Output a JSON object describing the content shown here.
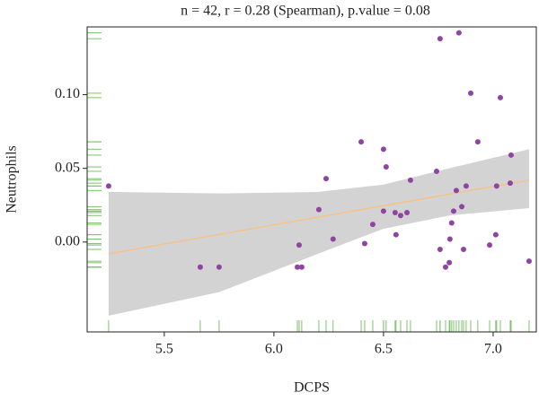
{
  "chart_data": {
    "type": "scatter",
    "title": "n = 42, r = 0.28 (Spearman), p.value = 0.08",
    "xlabel": "DCPS",
    "ylabel": "Neutrophils",
    "x": [
      5.246,
      5.664,
      5.75,
      6.107,
      6.127,
      6.115,
      6.205,
      6.238,
      6.27,
      6.398,
      6.414,
      6.451,
      6.5,
      6.5,
      6.512,
      6.553,
      6.557,
      6.578,
      6.607,
      6.623,
      6.742,
      6.758,
      6.758,
      6.783,
      6.8,
      6.803,
      6.811,
      6.82,
      6.832,
      6.844,
      6.857,
      6.865,
      6.877,
      6.898,
      6.93,
      6.984,
      7.012,
      7.016,
      7.033,
      7.078,
      7.082,
      7.164
    ],
    "values": [
      0.038,
      -0.017,
      -0.017,
      -0.017,
      -0.017,
      -0.002,
      0.022,
      0.043,
      0.002,
      0.068,
      -0.001,
      0.012,
      0.021,
      0.063,
      0.051,
      0.02,
      0.005,
      0.018,
      0.02,
      0.042,
      0.048,
      -0.005,
      0.138,
      -0.017,
      -0.014,
      0.002,
      0.013,
      0.021,
      0.035,
      0.142,
      0.024,
      -0.005,
      0.038,
      0.101,
      0.068,
      -0.002,
      0.005,
      0.038,
      0.098,
      0.04,
      0.059,
      -0.013
    ],
    "color": "#8e44a0",
    "rug_color": "#7dc36b",
    "fit": {
      "x": [
        5.246,
        7.164
      ],
      "values": [
        -0.008,
        0.042
      ],
      "color": "#f5c28a"
    },
    "band": {
      "x": [
        5.246,
        5.75,
        6.2,
        6.5,
        6.8,
        7.164
      ],
      "lower": [
        -0.05,
        -0.034,
        -0.008,
        0.009,
        0.018,
        0.023
      ],
      "upper": [
        0.034,
        0.033,
        0.034,
        0.039,
        0.05,
        0.063
      ],
      "color": "#d3d3d3"
    },
    "xlim": [
      5.148,
      7.197
    ],
    "xticks": [
      5.5,
      {
        "value": 6,
        "label": "6.0"
      },
      6.5,
      {
        "value": 7,
        "label": "7.0"
      }
    ],
    "ylim": [
      -0.061,
      0.146
    ],
    "yticks": [
      {
        "value": 0,
        "label": "0.00"
      },
      {
        "value": 0.05,
        "label": "0.05"
      },
      {
        "value": 0.1,
        "label": "0.10"
      }
    ]
  }
}
